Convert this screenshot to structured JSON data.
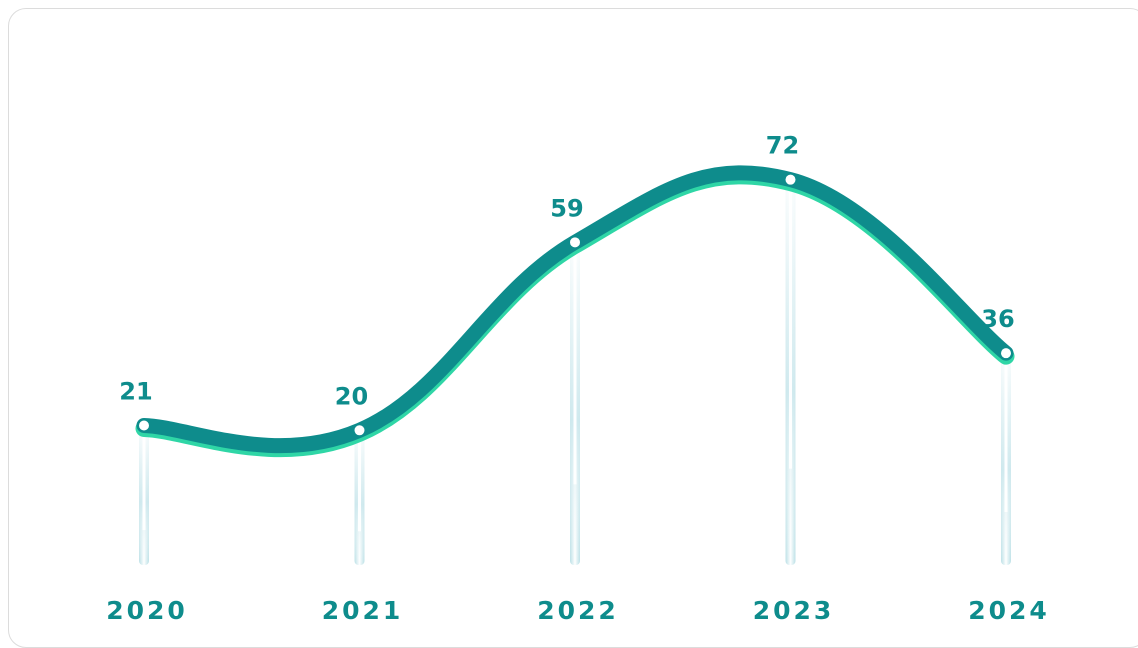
{
  "chart_data": {
    "type": "line",
    "categories": [
      "2020",
      "2021",
      "2022",
      "2023",
      "2024"
    ],
    "values": [
      21,
      20,
      59,
      72,
      36
    ],
    "title": "",
    "xlabel": "",
    "ylabel": "",
    "grid": false,
    "legend": "none",
    "colors": {
      "line": "#0e8c8c",
      "line_glow": "#2fd6a6",
      "label": "#0e8c8c",
      "stem": "#b9e1e8"
    }
  }
}
